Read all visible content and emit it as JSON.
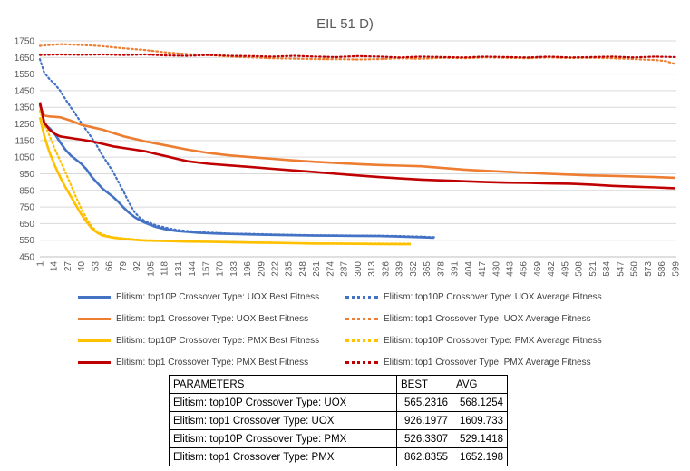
{
  "chart_data": {
    "type": "line",
    "title": "EIL 51 D)",
    "xlabel": "",
    "ylabel": "",
    "ylim": [
      450,
      1750
    ],
    "yticks": [
      450,
      550,
      650,
      750,
      850,
      950,
      1050,
      1150,
      1250,
      1350,
      1450,
      1550,
      1650,
      1750
    ],
    "xlim": [
      1,
      600
    ],
    "xticks": [
      1,
      14,
      27,
      40,
      53,
      66,
      79,
      92,
      105,
      118,
      131,
      144,
      157,
      170,
      183,
      196,
      209,
      222,
      235,
      248,
      261,
      274,
      287,
      300,
      313,
      326,
      339,
      352,
      365,
      378,
      391,
      404,
      417,
      430,
      443,
      456,
      469,
      482,
      495,
      508,
      521,
      534,
      547,
      560,
      573,
      586,
      599
    ],
    "grid": true,
    "legend_position": "bottom",
    "series": [
      {
        "name": "Elitism: top10P Crossover Type: UOX  Best Fitness",
        "color": "#4472C4",
        "style": "solid",
        "x": [
          1,
          5,
          10,
          15,
          20,
          25,
          30,
          35,
          40,
          45,
          50,
          55,
          60,
          65,
          70,
          75,
          80,
          85,
          90,
          95,
          100,
          110,
          120,
          130,
          140,
          150,
          160,
          170,
          180,
          200,
          220,
          240,
          260,
          280,
          300,
          320,
          340,
          360,
          372
        ],
        "y": [
          1370,
          1250,
          1225,
          1190,
          1140,
          1095,
          1060,
          1035,
          1010,
          975,
          930,
          895,
          860,
          835,
          810,
          780,
          745,
          715,
          690,
          670,
          655,
          630,
          615,
          605,
          600,
          595,
          592,
          590,
          588,
          585,
          582,
          580,
          578,
          577,
          576,
          575,
          572,
          568,
          565
        ]
      },
      {
        "name": "Elitism: top10P Crossover Type: UOX  Average Fitness",
        "color": "#4472C4",
        "style": "dotted",
        "x": [
          1,
          5,
          10,
          15,
          20,
          25,
          30,
          35,
          40,
          45,
          50,
          55,
          60,
          65,
          70,
          75,
          80,
          85,
          90,
          95,
          100,
          110,
          120,
          130,
          140,
          150,
          160,
          170,
          180,
          200,
          220,
          240,
          260,
          280,
          300,
          320,
          340,
          360,
          372
        ],
        "y": [
          1640,
          1560,
          1520,
          1490,
          1450,
          1400,
          1350,
          1305,
          1255,
          1210,
          1165,
          1115,
          1060,
          1010,
          960,
          900,
          840,
          775,
          720,
          685,
          665,
          640,
          625,
          612,
          605,
          600,
          596,
          593,
          590,
          588,
          585,
          582,
          580,
          579,
          578,
          577,
          575,
          572,
          568
        ]
      },
      {
        "name": "Elitism: top1 Crossover Type: UOX  Best Fitness",
        "color": "#ED7D31",
        "style": "solid",
        "x": [
          1,
          5,
          10,
          20,
          30,
          40,
          50,
          60,
          70,
          80,
          90,
          100,
          120,
          140,
          160,
          180,
          200,
          220,
          240,
          260,
          280,
          300,
          320,
          340,
          360,
          380,
          400,
          420,
          440,
          460,
          480,
          500,
          520,
          540,
          560,
          580,
          599
        ],
        "y": [
          1360,
          1300,
          1295,
          1290,
          1270,
          1245,
          1230,
          1215,
          1195,
          1175,
          1160,
          1145,
          1120,
          1095,
          1075,
          1060,
          1050,
          1040,
          1030,
          1022,
          1015,
          1008,
          1003,
          999,
          995,
          985,
          975,
          968,
          962,
          955,
          950,
          945,
          940,
          937,
          934,
          930,
          926
        ]
      },
      {
        "name": "Elitism: top1 Crossover Type: UOX  Average Fitness",
        "color": "#ED7D31",
        "style": "dotted",
        "x": [
          1,
          10,
          20,
          30,
          40,
          50,
          60,
          80,
          100,
          120,
          140,
          160,
          180,
          200,
          220,
          240,
          260,
          280,
          300,
          320,
          340,
          360,
          380,
          400,
          420,
          440,
          460,
          480,
          500,
          520,
          540,
          560,
          580,
          590,
          599
        ],
        "y": [
          1720,
          1725,
          1730,
          1728,
          1725,
          1722,
          1718,
          1705,
          1695,
          1680,
          1670,
          1665,
          1655,
          1650,
          1645,
          1643,
          1640,
          1640,
          1638,
          1640,
          1645,
          1642,
          1648,
          1645,
          1650,
          1648,
          1645,
          1650,
          1647,
          1648,
          1645,
          1640,
          1635,
          1628,
          1610
        ]
      },
      {
        "name": "Elitism: top10P Crossover Type: PMX  Best Fitness",
        "color": "#FFC000",
        "style": "solid",
        "x": [
          1,
          5,
          10,
          15,
          20,
          25,
          30,
          35,
          40,
          45,
          50,
          55,
          60,
          65,
          70,
          80,
          90,
          100,
          120,
          140,
          160,
          180,
          200,
          220,
          240,
          260,
          280,
          300,
          320,
          340,
          350
        ],
        "y": [
          1290,
          1180,
          1080,
          1000,
          930,
          870,
          815,
          760,
          705,
          660,
          620,
          595,
          578,
          572,
          565,
          558,
          552,
          548,
          545,
          542,
          540,
          538,
          536,
          534,
          532,
          530,
          529,
          528,
          527,
          526,
          526
        ]
      },
      {
        "name": "Elitism: top10P Crossover Type: PMX  Average Fitness",
        "color": "#FFC000",
        "style": "dotted",
        "x": [
          1,
          5,
          10,
          15,
          20,
          25,
          30,
          35,
          40,
          45,
          50,
          55,
          60,
          65,
          70,
          80,
          90,
          100,
          120,
          140,
          160,
          180,
          200,
          220,
          240,
          260,
          280,
          300,
          320,
          340,
          350
        ],
        "y": [
          1330,
          1250,
          1180,
          1100,
          1030,
          960,
          885,
          810,
          740,
          680,
          630,
          600,
          585,
          575,
          568,
          560,
          555,
          550,
          546,
          543,
          541,
          539,
          537,
          535,
          533,
          532,
          531,
          530,
          530,
          529,
          529
        ]
      },
      {
        "name": "Elitism: top1 Crossover Type: PMX  Best Fitness",
        "color": "#C00000",
        "style": "solid",
        "x": [
          1,
          5,
          10,
          15,
          20,
          30,
          40,
          50,
          60,
          70,
          80,
          90,
          100,
          110,
          120,
          130,
          140,
          160,
          180,
          200,
          220,
          240,
          260,
          280,
          300,
          320,
          340,
          360,
          380,
          400,
          420,
          440,
          460,
          480,
          500,
          520,
          540,
          560,
          580,
          599
        ],
        "y": [
          1380,
          1260,
          1215,
          1190,
          1175,
          1165,
          1155,
          1145,
          1130,
          1115,
          1105,
          1095,
          1085,
          1070,
          1055,
          1040,
          1025,
          1010,
          1000,
          990,
          980,
          970,
          960,
          950,
          940,
          930,
          922,
          915,
          910,
          905,
          900,
          897,
          895,
          892,
          890,
          885,
          877,
          872,
          868,
          863
        ]
      },
      {
        "name": "Elitism: top1 Crossover Type: PMX  Average Fitness",
        "color": "#C00000",
        "style": "dotted",
        "x": [
          1,
          20,
          40,
          60,
          80,
          100,
          120,
          140,
          160,
          180,
          200,
          220,
          240,
          260,
          280,
          300,
          320,
          340,
          360,
          380,
          400,
          420,
          440,
          460,
          480,
          500,
          520,
          540,
          560,
          580,
          599
        ],
        "y": [
          1665,
          1668,
          1666,
          1668,
          1665,
          1668,
          1662,
          1660,
          1665,
          1660,
          1658,
          1655,
          1660,
          1655,
          1652,
          1658,
          1655,
          1650,
          1655,
          1652,
          1650,
          1655,
          1652,
          1650,
          1655,
          1650,
          1652,
          1655,
          1650,
          1655,
          1652
        ]
      }
    ]
  },
  "legend": [
    {
      "label": "Elitism: top10P Crossover Type: UOX  Best Fitness",
      "color": "#4472C4",
      "style": "solid"
    },
    {
      "label": "Elitism: top10P Crossover Type: UOX  Average Fitness",
      "color": "#4472C4",
      "style": "dotted"
    },
    {
      "label": "Elitism: top1 Crossover Type: UOX  Best Fitness",
      "color": "#ED7D31",
      "style": "solid"
    },
    {
      "label": "Elitism: top1 Crossover Type: UOX  Average Fitness",
      "color": "#ED7D31",
      "style": "dotted"
    },
    {
      "label": "Elitism: top10P Crossover Type: PMX  Best Fitness",
      "color": "#FFC000",
      "style": "solid"
    },
    {
      "label": "Elitism: top10P Crossover Type: PMX  Average Fitness",
      "color": "#FFC000",
      "style": "dotted"
    },
    {
      "label": "Elitism: top1 Crossover Type: PMX  Best Fitness",
      "color": "#C00000",
      "style": "solid"
    },
    {
      "label": "Elitism: top1 Crossover Type: PMX  Average Fitness",
      "color": "#C00000",
      "style": "dotted"
    }
  ],
  "table": {
    "headers": [
      "PARAMETERS",
      "BEST",
      "AVG"
    ],
    "rows": [
      [
        "Elitism: top10P Crossover Type: UOX",
        "565.2316",
        "568.1254"
      ],
      [
        "Elitism: top1 Crossover Type: UOX",
        "926.1977",
        "1609.733"
      ],
      [
        "Elitism: top10P Crossover Type: PMX",
        "526.3307",
        "529.1418"
      ],
      [
        "Elitism: top1 Crossover Type: PMX",
        "862.8355",
        "1652.198"
      ]
    ]
  }
}
